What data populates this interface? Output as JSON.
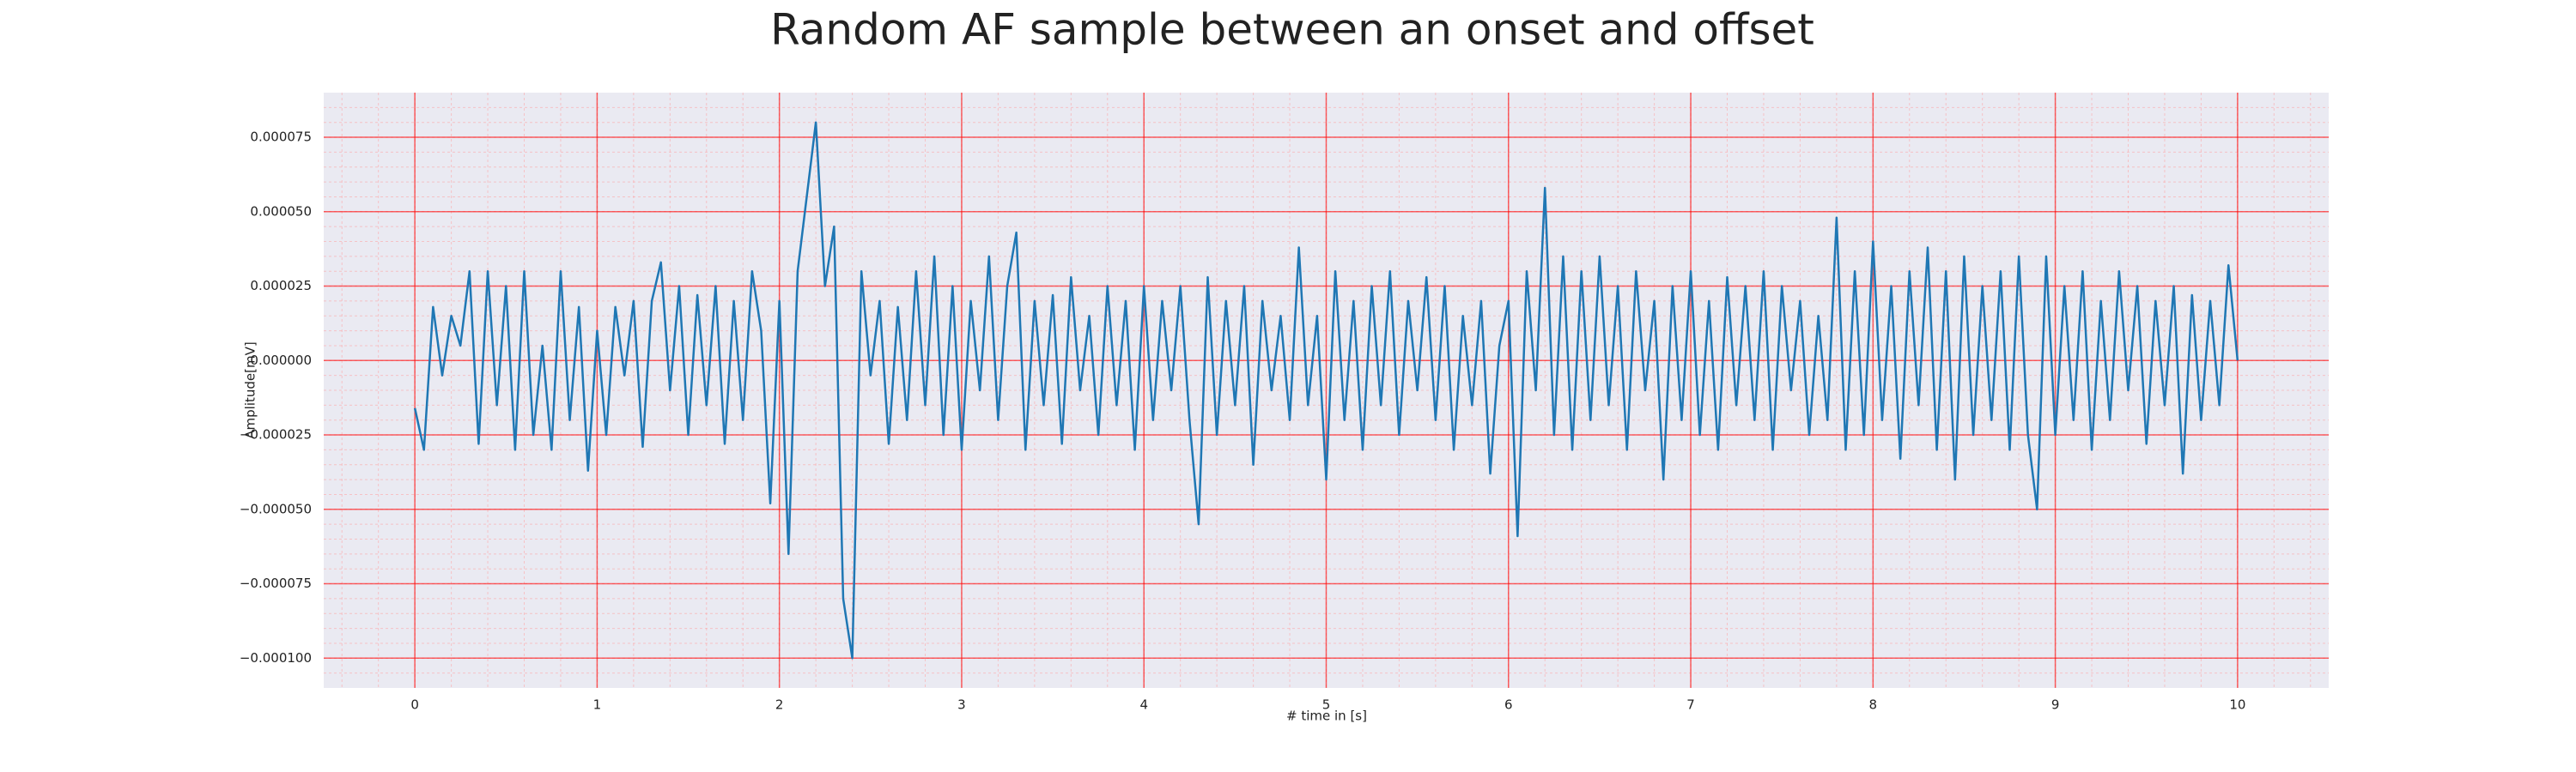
{
  "chart_data": {
    "type": "line",
    "title": "Random AF sample between an onset and offset",
    "xlabel": "# time in [s]",
    "ylabel": "Amplitude[mV]",
    "x": [
      0,
      0.05,
      0.1,
      0.15,
      0.2,
      0.25,
      0.3,
      0.35,
      0.4,
      0.45,
      0.5,
      0.55,
      0.6,
      0.65,
      0.7,
      0.75,
      0.8,
      0.85,
      0.9,
      0.95,
      1,
      1.05,
      1.1,
      1.15,
      1.2,
      1.25,
      1.3,
      1.35,
      1.4,
      1.45,
      1.5,
      1.55,
      1.6,
      1.65,
      1.7,
      1.75,
      1.8,
      1.85,
      1.9,
      1.95,
      2,
      2.05,
      2.1,
      2.15,
      2.2,
      2.25,
      2.3,
      2.35,
      2.4,
      2.45,
      2.5,
      2.55,
      2.6,
      2.65,
      2.7,
      2.75,
      2.8,
      2.85,
      2.9,
      2.95,
      3,
      3.05,
      3.1,
      3.15,
      3.2,
      3.25,
      3.3,
      3.35,
      3.4,
      3.45,
      3.5,
      3.55,
      3.6,
      3.65,
      3.7,
      3.75,
      3.8,
      3.85,
      3.9,
      3.95,
      4,
      4.05,
      4.1,
      4.15,
      4.2,
      4.25,
      4.3,
      4.35,
      4.4,
      4.45,
      4.5,
      4.55,
      4.6,
      4.65,
      4.7,
      4.75,
      4.8,
      4.85,
      4.9,
      4.95,
      5,
      5.05,
      5.1,
      5.15,
      5.2,
      5.25,
      5.3,
      5.35,
      5.4,
      5.45,
      5.5,
      5.55,
      5.6,
      5.65,
      5.7,
      5.75,
      5.8,
      5.85,
      5.9,
      5.95,
      6,
      6.05,
      6.1,
      6.15,
      6.2,
      6.25,
      6.3,
      6.35,
      6.4,
      6.45,
      6.5,
      6.55,
      6.6,
      6.65,
      6.7,
      6.75,
      6.8,
      6.85,
      6.9,
      6.95,
      7,
      7.05,
      7.1,
      7.15,
      7.2,
      7.25,
      7.3,
      7.35,
      7.4,
      7.45,
      7.5,
      7.55,
      7.6,
      7.65,
      7.7,
      7.75,
      7.8,
      7.85,
      7.9,
      7.95,
      8,
      8.05,
      8.1,
      8.15,
      8.2,
      8.25,
      8.3,
      8.35,
      8.4,
      8.45,
      8.5,
      8.55,
      8.6,
      8.65,
      8.7,
      8.75,
      8.8,
      8.85,
      8.9,
      8.95,
      9,
      9.05,
      9.1,
      9.15,
      9.2,
      9.25,
      9.3,
      9.35,
      9.4,
      9.45,
      9.5,
      9.55,
      9.6,
      9.65,
      9.7,
      9.75,
      9.8,
      9.85,
      9.9,
      9.95,
      10
    ],
    "series": [
      {
        "color": "#1f77b4",
        "values": [
          -1.6e-05,
          -3e-05,
          1.8e-05,
          -5e-06,
          1.5e-05,
          5e-06,
          3e-05,
          -2.8e-05,
          3e-05,
          -1.5e-05,
          2.5e-05,
          -3e-05,
          3e-05,
          -2.5e-05,
          5e-06,
          -3e-05,
          3e-05,
          -2e-05,
          1.8e-05,
          -3.7e-05,
          1e-05,
          -2.5e-05,
          1.8e-05,
          -5e-06,
          2e-05,
          -2.9e-05,
          2e-05,
          3.3e-05,
          -1e-05,
          2.5e-05,
          -2.5e-05,
          2.2e-05,
          -1.5e-05,
          2.5e-05,
          -2.8e-05,
          2e-05,
          -2e-05,
          3e-05,
          1e-05,
          -4.8e-05,
          2e-05,
          -6.5e-05,
          3e-05,
          5.5e-05,
          8e-05,
          2.5e-05,
          4.5e-05,
          -8e-05,
          -0.0001,
          3e-05,
          -5e-06,
          2e-05,
          -2.8e-05,
          1.8e-05,
          -2e-05,
          3e-05,
          -1.5e-05,
          3.5e-05,
          -2.5e-05,
          2.5e-05,
          -3e-05,
          2e-05,
          -1e-05,
          3.5e-05,
          -2e-05,
          2.5e-05,
          4.3e-05,
          -3e-05,
          2e-05,
          -1.5e-05,
          2.2e-05,
          -2.8e-05,
          2.8e-05,
          -1e-05,
          1.5e-05,
          -2.5e-05,
          2.5e-05,
          -1.5e-05,
          2e-05,
          -3e-05,
          2.5e-05,
          -2e-05,
          2e-05,
          -1e-05,
          2.5e-05,
          -2e-05,
          -5.5e-05,
          2.8e-05,
          -2.5e-05,
          2e-05,
          -1.5e-05,
          2.5e-05,
          -3.5e-05,
          2e-05,
          -1e-05,
          1.5e-05,
          -2e-05,
          3.8e-05,
          -1.5e-05,
          1.5e-05,
          -4e-05,
          3e-05,
          -2e-05,
          2e-05,
          -3e-05,
          2.5e-05,
          -1.5e-05,
          3e-05,
          -2.5e-05,
          2e-05,
          -1e-05,
          2.8e-05,
          -2e-05,
          2.5e-05,
          -3e-05,
          1.5e-05,
          -1.5e-05,
          2e-05,
          -3.8e-05,
          5e-06,
          2e-05,
          -5.9e-05,
          3e-05,
          -1e-05,
          5.8e-05,
          -2.5e-05,
          3.5e-05,
          -3e-05,
          3e-05,
          -2e-05,
          3.5e-05,
          -1.5e-05,
          2.5e-05,
          -3e-05,
          3e-05,
          -1e-05,
          2e-05,
          -4e-05,
          2.5e-05,
          -2e-05,
          3e-05,
          -2.5e-05,
          2e-05,
          -3e-05,
          2.8e-05,
          -1.5e-05,
          2.5e-05,
          -2e-05,
          3e-05,
          -3e-05,
          2.5e-05,
          -1e-05,
          2e-05,
          -2.5e-05,
          1.5e-05,
          -2e-05,
          4.8e-05,
          -3e-05,
          3e-05,
          -2.5e-05,
          4e-05,
          -2e-05,
          2.5e-05,
          -3.3e-05,
          3e-05,
          -1.5e-05,
          3.8e-05,
          -3e-05,
          3e-05,
          -4e-05,
          3.5e-05,
          -2.5e-05,
          2.5e-05,
          -2e-05,
          3e-05,
          -3e-05,
          3.5e-05,
          -2.5e-05,
          -5e-05,
          3.5e-05,
          -2.5e-05,
          2.5e-05,
          -2e-05,
          3e-05,
          -3e-05,
          2e-05,
          -2e-05,
          3e-05,
          -1e-05,
          2.5e-05,
          -2.8e-05,
          2e-05,
          -1.5e-05,
          2.5e-05,
          -3.8e-05,
          2.2e-05,
          -2e-05,
          2e-05,
          -1.5e-05,
          3.2e-05,
          0
        ]
      }
    ],
    "xlim": [
      -0.5,
      10.5
    ],
    "xticks": [
      0,
      1,
      2,
      3,
      4,
      5,
      6,
      7,
      8,
      9,
      10
    ],
    "ylim": [
      -0.00011,
      9e-05
    ],
    "yticks": [
      {
        "value": -0.0001,
        "label": "−0.000100"
      },
      {
        "value": -7.5e-05,
        "label": "−0.000075"
      },
      {
        "value": -5e-05,
        "label": "−0.000050"
      },
      {
        "value": -2.5e-05,
        "label": "−0.000025"
      },
      {
        "value": 0,
        "label": "0.000000"
      },
      2.5e-05,
      {
        "value": 5e-05,
        "label": "0.000050"
      },
      7.5e-05
    ],
    "grid": true,
    "minor_grid": true
  }
}
